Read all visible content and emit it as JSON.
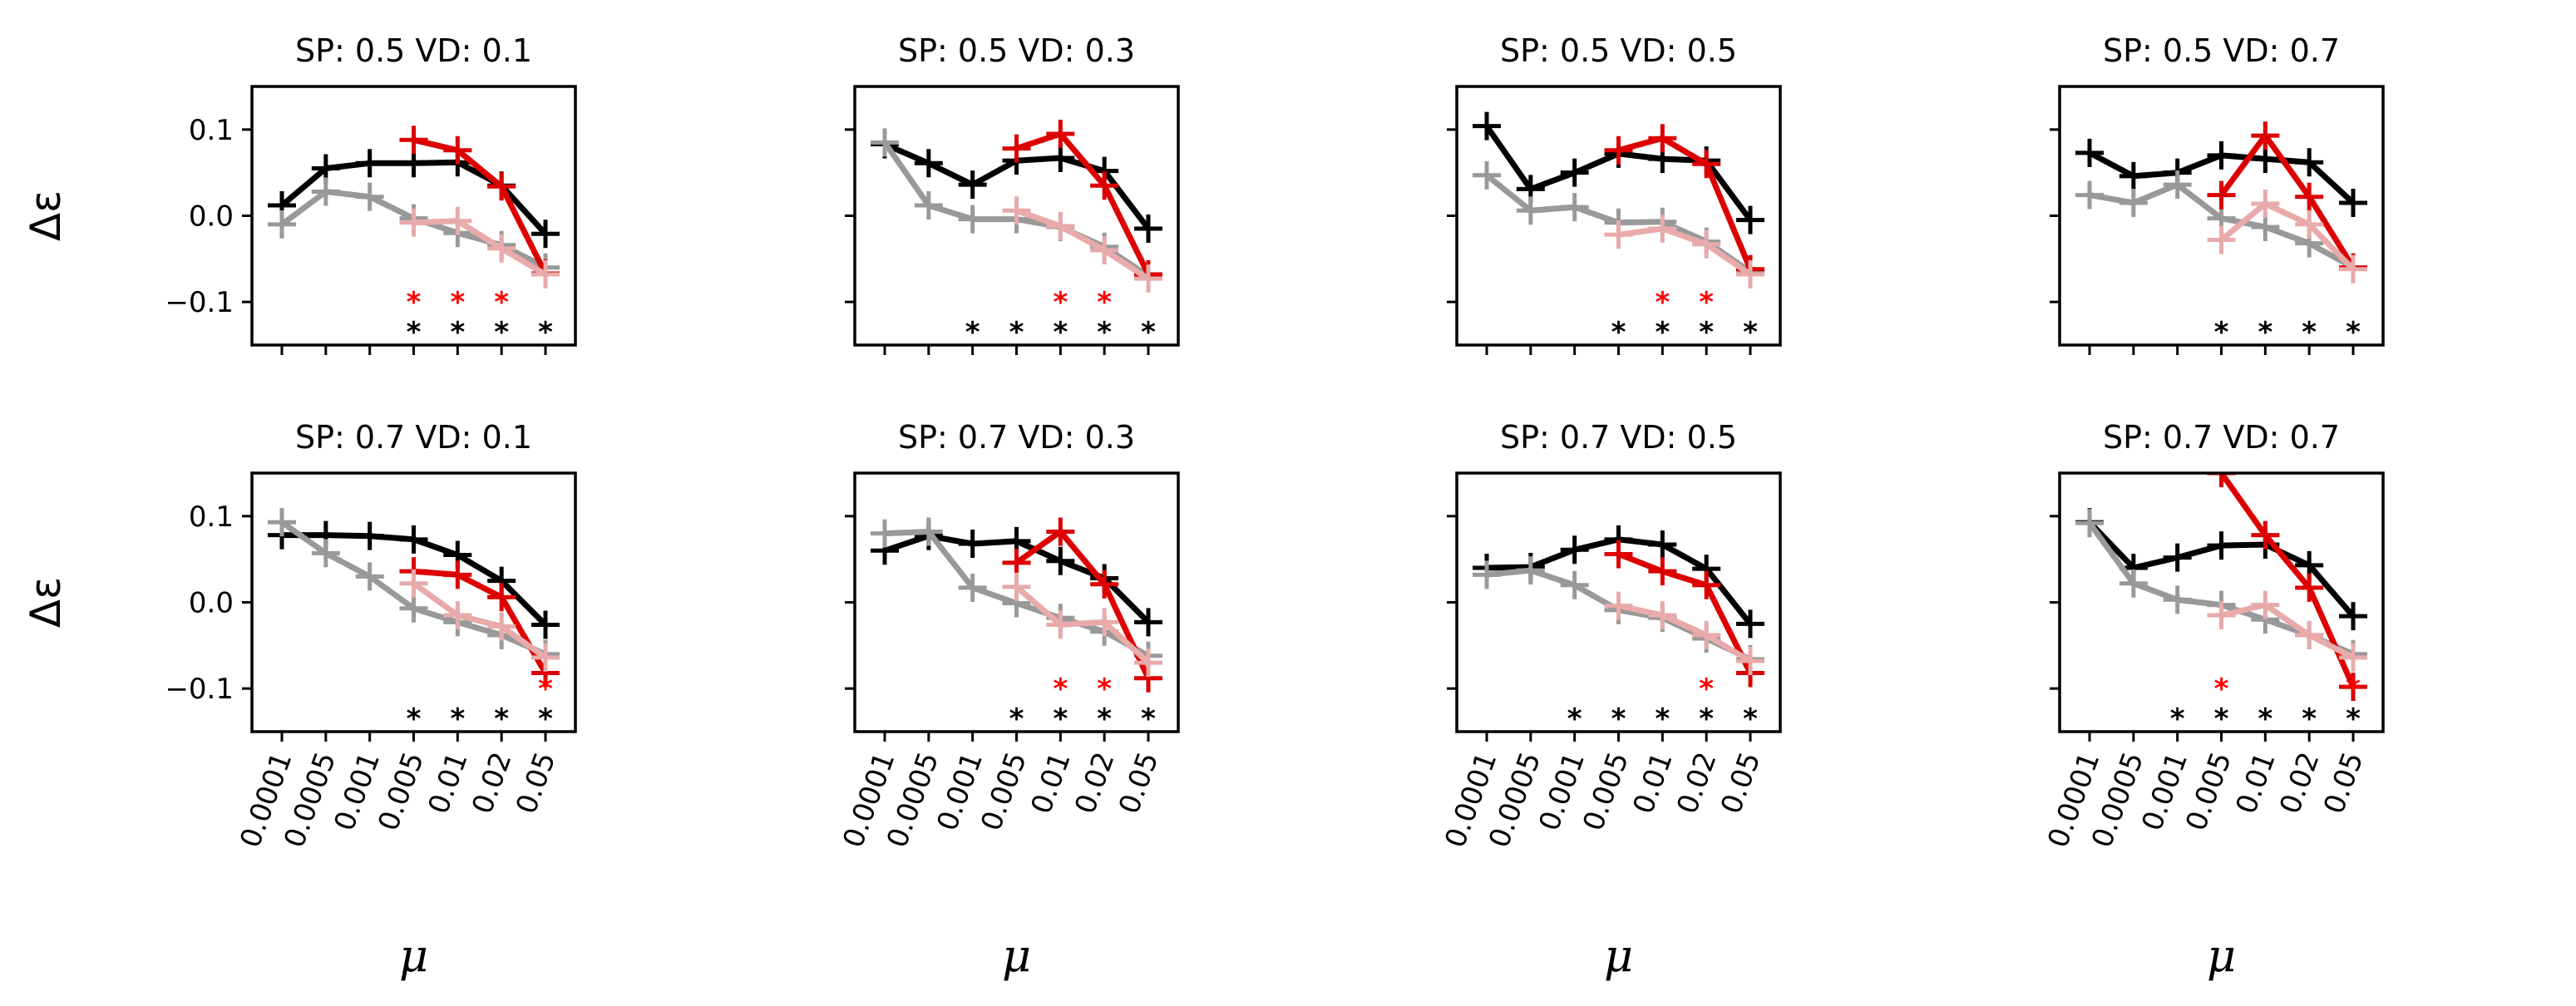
{
  "colors": {
    "black_series": "#000000",
    "gray_series": "#999999",
    "red_series": "#dd0000",
    "pink_series": "#e8aaaa",
    "red_star": "#ff0000",
    "black_star": "#000000"
  },
  "star_glyph": "*",
  "chart_data": [
    {
      "type": "line",
      "title": "SP: 0.5 VD: 0.1",
      "x": [
        "0.0001",
        "0.0005",
        "0.001",
        "0.005",
        "0.01",
        "0.02",
        "0.05"
      ],
      "xlabel": "μ",
      "ylabel": "Δε",
      "ylim": [
        -0.15,
        0.15
      ],
      "yticks": [
        "0.1",
        "0.0",
        "−0.1"
      ],
      "series": [
        {
          "color_key": "black_series",
          "values": [
            0.012,
            0.055,
            0.061,
            0.061,
            0.062,
            0.035,
            -0.021
          ]
        },
        {
          "color_key": "gray_series",
          "values": [
            -0.01,
            0.028,
            0.022,
            -0.003,
            -0.02,
            -0.034,
            -0.06
          ]
        },
        {
          "color_key": "red_series",
          "values": [
            null,
            null,
            null,
            0.088,
            0.076,
            0.034,
            -0.067
          ]
        },
        {
          "color_key": "pink_series",
          "values": [
            null,
            null,
            null,
            -0.008,
            -0.006,
            -0.038,
            -0.068
          ]
        }
      ],
      "red_stars": [
        3,
        4,
        5
      ],
      "black_stars": [
        3,
        4,
        5,
        6
      ]
    },
    {
      "type": "line",
      "title": "SP: 0.5 VD: 0.3",
      "x": [
        "0.0001",
        "0.0005",
        "0.001",
        "0.005",
        "0.01",
        "0.02",
        "0.05"
      ],
      "xlabel": "μ",
      "ylabel": "",
      "ylim": [
        -0.15,
        0.15
      ],
      "yticks": [],
      "series": [
        {
          "color_key": "black_series",
          "values": [
            0.083,
            0.061,
            0.036,
            0.064,
            0.067,
            0.052,
            -0.015
          ]
        },
        {
          "color_key": "gray_series",
          "values": [
            0.085,
            0.012,
            -0.004,
            -0.004,
            -0.013,
            -0.036,
            -0.07
          ]
        },
        {
          "color_key": "red_series",
          "values": [
            null,
            null,
            null,
            0.078,
            0.095,
            0.035,
            -0.068
          ]
        },
        {
          "color_key": "pink_series",
          "values": [
            null,
            null,
            null,
            0.006,
            -0.012,
            -0.04,
            -0.073
          ]
        }
      ],
      "red_stars": [
        4,
        5
      ],
      "black_stars": [
        2,
        3,
        4,
        5,
        6
      ]
    },
    {
      "type": "line",
      "title": "SP: 0.5 VD: 0.5",
      "x": [
        "0.0001",
        "0.0005",
        "0.001",
        "0.005",
        "0.01",
        "0.02",
        "0.05"
      ],
      "xlabel": "μ",
      "ylabel": "",
      "ylim": [
        -0.15,
        0.15
      ],
      "yticks": [],
      "series": [
        {
          "color_key": "black_series",
          "values": [
            0.104,
            0.031,
            0.05,
            0.072,
            0.066,
            0.064,
            -0.005
          ]
        },
        {
          "color_key": "gray_series",
          "values": [
            0.047,
            0.006,
            0.01,
            -0.008,
            -0.007,
            -0.03,
            -0.065
          ]
        },
        {
          "color_key": "red_series",
          "values": [
            null,
            null,
            null,
            0.076,
            0.09,
            0.06,
            -0.062
          ]
        },
        {
          "color_key": "pink_series",
          "values": [
            null,
            null,
            null,
            -0.022,
            -0.015,
            -0.033,
            -0.068
          ]
        }
      ],
      "red_stars": [
        4,
        5
      ],
      "black_stars": [
        3,
        4,
        5,
        6
      ]
    },
    {
      "type": "line",
      "title": "SP: 0.5 VD: 0.7",
      "x": [
        "0.0001",
        "0.0005",
        "0.001",
        "0.005",
        "0.01",
        "0.02",
        "0.05"
      ],
      "xlabel": "μ",
      "ylabel": "",
      "ylim": [
        -0.15,
        0.15
      ],
      "yticks": [],
      "series": [
        {
          "color_key": "black_series",
          "values": [
            0.073,
            0.046,
            0.05,
            0.07,
            0.066,
            0.062,
            0.015
          ]
        },
        {
          "color_key": "gray_series",
          "values": [
            0.024,
            0.015,
            0.036,
            -0.003,
            -0.013,
            -0.032,
            -0.06
          ]
        },
        {
          "color_key": "red_series",
          "values": [
            null,
            null,
            null,
            0.024,
            0.093,
            0.022,
            -0.06
          ]
        },
        {
          "color_key": "pink_series",
          "values": [
            null,
            null,
            null,
            -0.028,
            0.014,
            -0.01,
            -0.062
          ]
        }
      ],
      "red_stars": [],
      "black_stars": [
        3,
        4,
        5,
        6
      ]
    },
    {
      "type": "line",
      "title": "SP: 0.7 VD: 0.1",
      "x": [
        "0.0001",
        "0.0005",
        "0.001",
        "0.005",
        "0.01",
        "0.02",
        "0.05"
      ],
      "xlabel": "μ",
      "ylabel": "Δε",
      "ylim": [
        -0.15,
        0.15
      ],
      "yticks": [
        "0.1",
        "0.0",
        "−0.1"
      ],
      "series": [
        {
          "color_key": "black_series",
          "values": [
            0.078,
            0.078,
            0.077,
            0.073,
            0.055,
            0.025,
            -0.026
          ]
        },
        {
          "color_key": "gray_series",
          "values": [
            0.093,
            0.057,
            0.03,
            -0.007,
            -0.023,
            -0.038,
            -0.06
          ]
        },
        {
          "color_key": "red_series",
          "values": [
            null,
            null,
            null,
            0.036,
            0.032,
            0.006,
            -0.082
          ]
        },
        {
          "color_key": "pink_series",
          "values": [
            null,
            null,
            null,
            0.022,
            -0.015,
            -0.028,
            -0.064
          ]
        }
      ],
      "red_stars": [
        6
      ],
      "black_stars": [
        3,
        4,
        5,
        6
      ]
    },
    {
      "type": "line",
      "title": "SP: 0.7 VD: 0.3",
      "x": [
        "0.0001",
        "0.0005",
        "0.001",
        "0.005",
        "0.01",
        "0.02",
        "0.05"
      ],
      "xlabel": "μ",
      "ylabel": "",
      "ylim": [
        -0.15,
        0.15
      ],
      "yticks": [],
      "series": [
        {
          "color_key": "black_series",
          "values": [
            0.06,
            0.077,
            0.068,
            0.071,
            0.048,
            0.028,
            -0.023
          ]
        },
        {
          "color_key": "gray_series",
          "values": [
            0.08,
            0.082,
            0.017,
            -0.001,
            -0.018,
            -0.034,
            -0.062
          ]
        },
        {
          "color_key": "red_series",
          "values": [
            null,
            null,
            null,
            0.046,
            0.082,
            0.021,
            -0.088
          ]
        },
        {
          "color_key": "pink_series",
          "values": [
            null,
            null,
            null,
            0.018,
            -0.026,
            -0.023,
            -0.07
          ]
        }
      ],
      "red_stars": [
        4,
        5
      ],
      "black_stars": [
        3,
        4,
        5,
        6
      ]
    },
    {
      "type": "line",
      "title": "SP: 0.7 VD: 0.5",
      "x": [
        "0.0001",
        "0.0005",
        "0.001",
        "0.005",
        "0.01",
        "0.02",
        "0.05"
      ],
      "xlabel": "μ",
      "ylabel": "",
      "ylim": [
        -0.15,
        0.15
      ],
      "yticks": [],
      "series": [
        {
          "color_key": "black_series",
          "values": [
            0.04,
            0.041,
            0.061,
            0.073,
            0.067,
            0.039,
            -0.025
          ]
        },
        {
          "color_key": "gray_series",
          "values": [
            0.032,
            0.037,
            0.02,
            -0.009,
            -0.018,
            -0.042,
            -0.066
          ]
        },
        {
          "color_key": "red_series",
          "values": [
            null,
            null,
            null,
            0.056,
            0.036,
            0.02,
            -0.082
          ]
        },
        {
          "color_key": "pink_series",
          "values": [
            null,
            null,
            null,
            -0.004,
            -0.015,
            -0.038,
            -0.068
          ]
        }
      ],
      "red_stars": [
        5
      ],
      "black_stars": [
        2,
        3,
        4,
        5,
        6
      ]
    },
    {
      "type": "line",
      "title": "SP: 0.7 VD: 0.7",
      "x": [
        "0.0001",
        "0.0005",
        "0.001",
        "0.005",
        "0.01",
        "0.02",
        "0.05"
      ],
      "xlabel": "μ",
      "ylabel": "",
      "ylim": [
        -0.15,
        0.15
      ],
      "yticks": [],
      "series": [
        {
          "color_key": "black_series",
          "values": [
            0.093,
            0.04,
            0.052,
            0.066,
            0.067,
            0.043,
            -0.016
          ]
        },
        {
          "color_key": "gray_series",
          "values": [
            0.092,
            0.022,
            0.003,
            -0.003,
            -0.02,
            -0.038,
            -0.06
          ]
        },
        {
          "color_key": "red_series",
          "values": [
            null,
            null,
            null,
            0.15,
            0.078,
            0.017,
            -0.098
          ]
        },
        {
          "color_key": "pink_series",
          "values": [
            null,
            null,
            null,
            -0.015,
            -0.003,
            -0.038,
            -0.064
          ]
        }
      ],
      "red_stars": [
        3,
        6
      ],
      "black_stars": [
        2,
        3,
        4,
        5,
        6
      ]
    }
  ]
}
